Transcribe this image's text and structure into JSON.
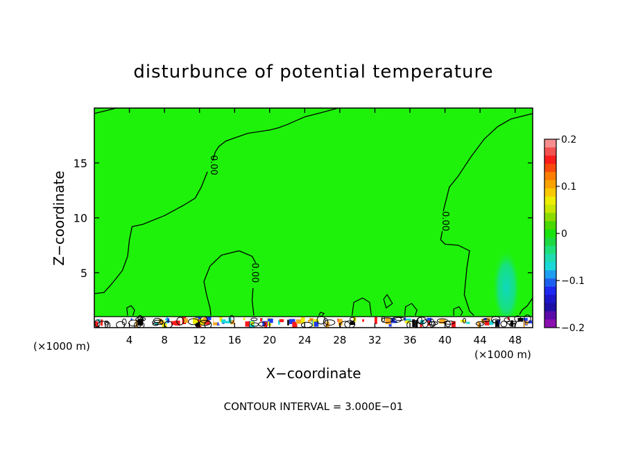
{
  "chart_data": {
    "type": "heatmap",
    "title": "disturbunce of potential temperature",
    "xlabel": "X−coordinate",
    "ylabel": "Z−coordinate",
    "x_unit_left": "(×1000 m)",
    "x_unit_right": "(×1000 m)",
    "footer": "CONTOUR INTERVAL = 3.000E−01",
    "xlim": [
      0,
      50
    ],
    "ylim": [
      0,
      20
    ],
    "x_ticks": [
      4,
      8,
      12,
      16,
      20,
      24,
      28,
      32,
      36,
      40,
      44,
      48
    ],
    "x_tick_labels": [
      "4",
      "8",
      "12",
      "16",
      "20",
      "24",
      "28",
      "32",
      "36",
      "40",
      "44",
      "48"
    ],
    "y_ticks": [
      5,
      10,
      15
    ],
    "y_tick_labels": [
      "5",
      "10",
      "15"
    ],
    "field_value_background": 0.0,
    "contour_labels": [
      {
        "text": "0.00",
        "x": 13.3,
        "y": 14.8
      },
      {
        "text": "0.00",
        "x": 18.0,
        "y": 5.0
      },
      {
        "text": "0.00",
        "x": 39.7,
        "y": 9.7
      }
    ],
    "contour_lines": [
      {
        "level": 0.0,
        "points": [
          [
            0,
            19.5
          ],
          [
            1.5,
            19.8
          ],
          [
            2.5,
            20
          ],
          [
            27.8,
            20
          ],
          [
            26,
            19.6
          ],
          [
            24,
            19.2
          ],
          [
            22,
            18.5
          ],
          [
            21,
            18.2
          ],
          [
            20,
            18.0
          ],
          [
            17.5,
            17.7
          ],
          [
            15,
            17.0
          ],
          [
            14.2,
            16.5
          ],
          [
            13.8,
            16.0
          ],
          [
            13.5,
            15.2
          ]
        ]
      },
      {
        "level": 0.0,
        "points": [
          [
            12.9,
            14.2
          ],
          [
            12.2,
            12.8
          ],
          [
            11.5,
            11.8
          ],
          [
            10.3,
            11.2
          ],
          [
            8.0,
            10.2
          ],
          [
            5.5,
            9.4
          ],
          [
            4.3,
            9.2
          ],
          [
            4.0,
            8.0
          ],
          [
            3.8,
            6.5
          ],
          [
            3.2,
            5.2
          ],
          [
            2.0,
            4.0
          ],
          [
            1.1,
            3.2
          ],
          [
            0,
            3.1
          ]
        ]
      },
      {
        "level": 0.0,
        "points": [
          [
            18.4,
            5.9
          ],
          [
            18.0,
            6.5
          ],
          [
            16.5,
            7.0
          ],
          [
            14.5,
            6.6
          ],
          [
            13.2,
            5.6
          ],
          [
            12.5,
            4.2
          ],
          [
            12.8,
            3.0
          ],
          [
            13.2,
            1.8
          ],
          [
            13.3,
            1.1
          ]
        ]
      },
      {
        "level": 0.0,
        "points": [
          [
            18.2,
            1.1
          ],
          [
            18.0,
            2.5
          ],
          [
            18.1,
            3.6
          ]
        ]
      },
      {
        "level": 0.0,
        "points": [
          [
            39.7,
            8.8
          ],
          [
            39.5,
            8.0
          ],
          [
            40.0,
            7.6
          ],
          [
            41.5,
            7.5
          ],
          [
            42.8,
            7.0
          ],
          [
            42.5,
            5.5
          ],
          [
            42.2,
            3.0
          ],
          [
            42.8,
            1.5
          ],
          [
            43.3,
            1.1
          ]
        ]
      },
      {
        "level": 0.0,
        "points": [
          [
            39.8,
            10.6
          ],
          [
            40.5,
            12.8
          ],
          [
            41.5,
            13.8
          ],
          [
            43.0,
            15.6
          ],
          [
            44.5,
            17.2
          ],
          [
            46.0,
            18.3
          ],
          [
            47.5,
            19.0
          ],
          [
            50,
            19.5
          ]
        ]
      },
      {
        "level": 0.0,
        "points": [
          [
            50,
            2.7
          ],
          [
            49.4,
            2.0
          ],
          [
            48.8,
            1.6
          ],
          [
            48.5,
            1.2
          ]
        ]
      }
    ],
    "bumps": [
      {
        "points": [
          [
            3.8,
            1.1
          ],
          [
            3.7,
            1.8
          ],
          [
            4.2,
            2.0
          ],
          [
            4.6,
            1.6
          ],
          [
            4.4,
            1.1
          ]
        ]
      },
      {
        "points": [
          [
            29.4,
            1.1
          ],
          [
            29.6,
            2.3
          ],
          [
            30.6,
            2.7
          ],
          [
            31.4,
            2.3
          ],
          [
            31.6,
            1.1
          ]
        ]
      },
      {
        "points": [
          [
            33.0,
            2.6
          ],
          [
            33.4,
            3.0
          ],
          [
            34.0,
            2.2
          ],
          [
            33.3,
            1.8
          ],
          [
            33.0,
            2.6
          ]
        ]
      },
      {
        "points": [
          [
            35.4,
            1.1
          ],
          [
            35.5,
            1.9
          ],
          [
            36.2,
            2.2
          ],
          [
            36.8,
            1.6
          ],
          [
            36.6,
            1.1
          ]
        ]
      },
      {
        "points": [
          [
            41.0,
            1.1
          ],
          [
            41.0,
            1.7
          ],
          [
            41.6,
            1.9
          ],
          [
            42.0,
            1.4
          ],
          [
            41.8,
            1.1
          ]
        ]
      },
      {
        "points": [
          [
            25.6,
            1.1
          ],
          [
            25.8,
            1.4
          ],
          [
            26.2,
            1.3
          ],
          [
            26.0,
            1.1
          ]
        ]
      }
    ],
    "plume": {
      "center_x": 47.0,
      "center_y": 4.0,
      "semi_x": 1.6,
      "semi_y": 3.6,
      "value": -0.05
    },
    "colorbar": {
      "ticks": [
        0.2,
        0.1,
        0,
        -0.1,
        -0.2
      ],
      "tick_labels": [
        "0.2",
        "0.1",
        "0",
        "−0.1",
        "−0.2"
      ],
      "colors_top_to_bottom": [
        "#f78d8d",
        "#f25151",
        "#fa1b1b",
        "#f74a0c",
        "#fb7e00",
        "#faa200",
        "#fac800",
        "#eded00",
        "#c8e600",
        "#8cdb00",
        "#49d900",
        "#19e30f",
        "#1ed841",
        "#1ee07a",
        "#1edbb1",
        "#1ad8d8",
        "#1e9ef0",
        "#1e60ee",
        "#1e28f0",
        "#1c16c9",
        "#1e10a6",
        "#5c0aa8",
        "#8b10b0"
      ]
    },
    "colors": {
      "background_field": "#1ef20a",
      "plume": "#16e07b",
      "ground_strip_warm": "#f5a623",
      "ground_strip_cold": "#1e3cf0",
      "contour": "#000000"
    }
  }
}
